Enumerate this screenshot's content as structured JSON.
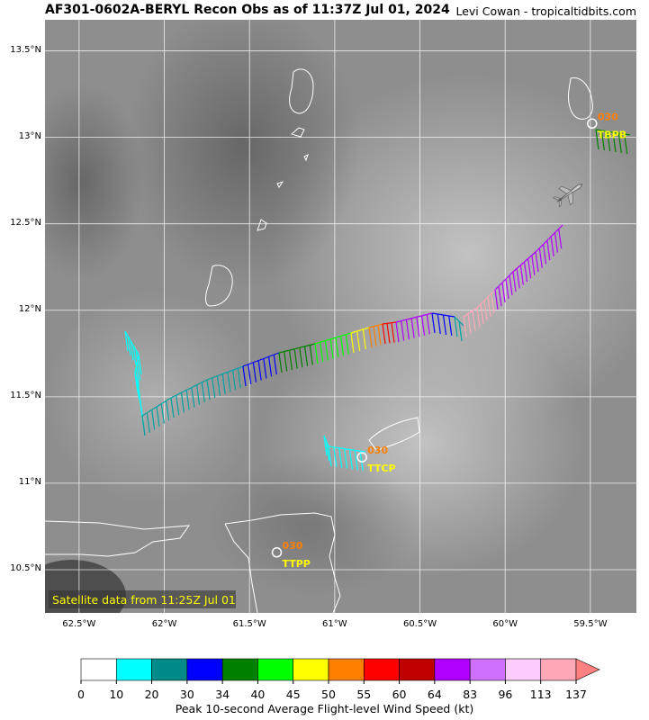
{
  "header": {
    "title": "AF301-0602A-BERYL Recon Obs as of 11:37Z Jul 01, 2024",
    "credit": "Levi Cowan - tropicaltidbits.com"
  },
  "map": {
    "satellite_note": "Satellite data from 11:25Z Jul 01",
    "lat_labels": [
      "13.5°N",
      "13°N",
      "12.5°N",
      "12°N",
      "11.5°N",
      "11°N",
      "10.5°N"
    ],
    "lon_labels": [
      "62.5°W",
      "62°W",
      "61.5°W",
      "61°W",
      "60.5°W",
      "60°W",
      "59.5°W"
    ],
    "lat_values": [
      13.5,
      13.0,
      12.5,
      12.0,
      11.5,
      11.0,
      10.5
    ],
    "lon_values": [
      -62.5,
      -62.0,
      -61.5,
      -61.0,
      -60.5,
      -60.0,
      -59.5
    ],
    "extent": {
      "lon_min": -62.7,
      "lon_max": -59.23,
      "lat_min": 10.25,
      "lat_max": 13.68
    },
    "stations": [
      {
        "id": "TBPB",
        "value": "030",
        "lon": -59.49,
        "lat": 13.08
      },
      {
        "id": "TTCP",
        "value": "030",
        "lon": -60.84,
        "lat": 11.15
      },
      {
        "id": "TTPP",
        "value": "030",
        "lon": -61.34,
        "lat": 10.6
      }
    ],
    "colors": {
      "station_value": "#ff7f00",
      "station_id": "#ffff00",
      "note_text": "#ffff00",
      "coast": "#ffffff"
    }
  },
  "colorbar": {
    "title": "Peak 10-second Average Flight-level Wind Speed (kt)",
    "ticks": [
      "0",
      "10",
      "20",
      "30",
      "34",
      "40",
      "45",
      "50",
      "55",
      "60",
      "64",
      "83",
      "96",
      "113",
      "137"
    ],
    "colors": [
      "#ffffff",
      "#00ffff",
      "#008b8b",
      "#0000ff",
      "#008000",
      "#00ff00",
      "#ffff00",
      "#ff7f00",
      "#ff0000",
      "#c00000",
      "#b000ff",
      "#d070ff",
      "#ffccff",
      "#ffa8b8"
    ],
    "extend_color": "#ff8080"
  }
}
